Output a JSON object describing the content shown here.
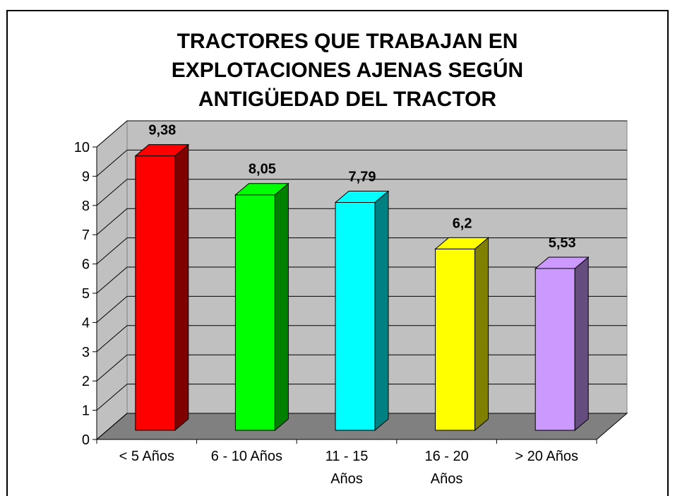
{
  "chart_data": {
    "type": "bar3d",
    "title": "TRACTORES QUE TRABAJAN EN EXPLOTACIONES AJENAS SEGÚN ANTIGÜEDAD DEL TRACTOR",
    "categories": [
      "< 5 Años",
      "6 - 10 Años",
      "11 - 15 Años",
      "16 - 20 Años",
      "> 20 Años"
    ],
    "values": [
      9.38,
      8.05,
      7.79,
      6.2,
      5.53
    ],
    "value_labels": [
      "9,38",
      "8,05",
      "7,79",
      "6,2",
      "5,53"
    ],
    "colors": [
      "#ff0000",
      "#00ff00",
      "#00ffff",
      "#ffff00",
      "#cc99ff"
    ],
    "ylim": [
      0,
      10
    ],
    "yticks": [
      0,
      1,
      2,
      3,
      4,
      5,
      6,
      7,
      8,
      9,
      10
    ],
    "grid": true
  }
}
